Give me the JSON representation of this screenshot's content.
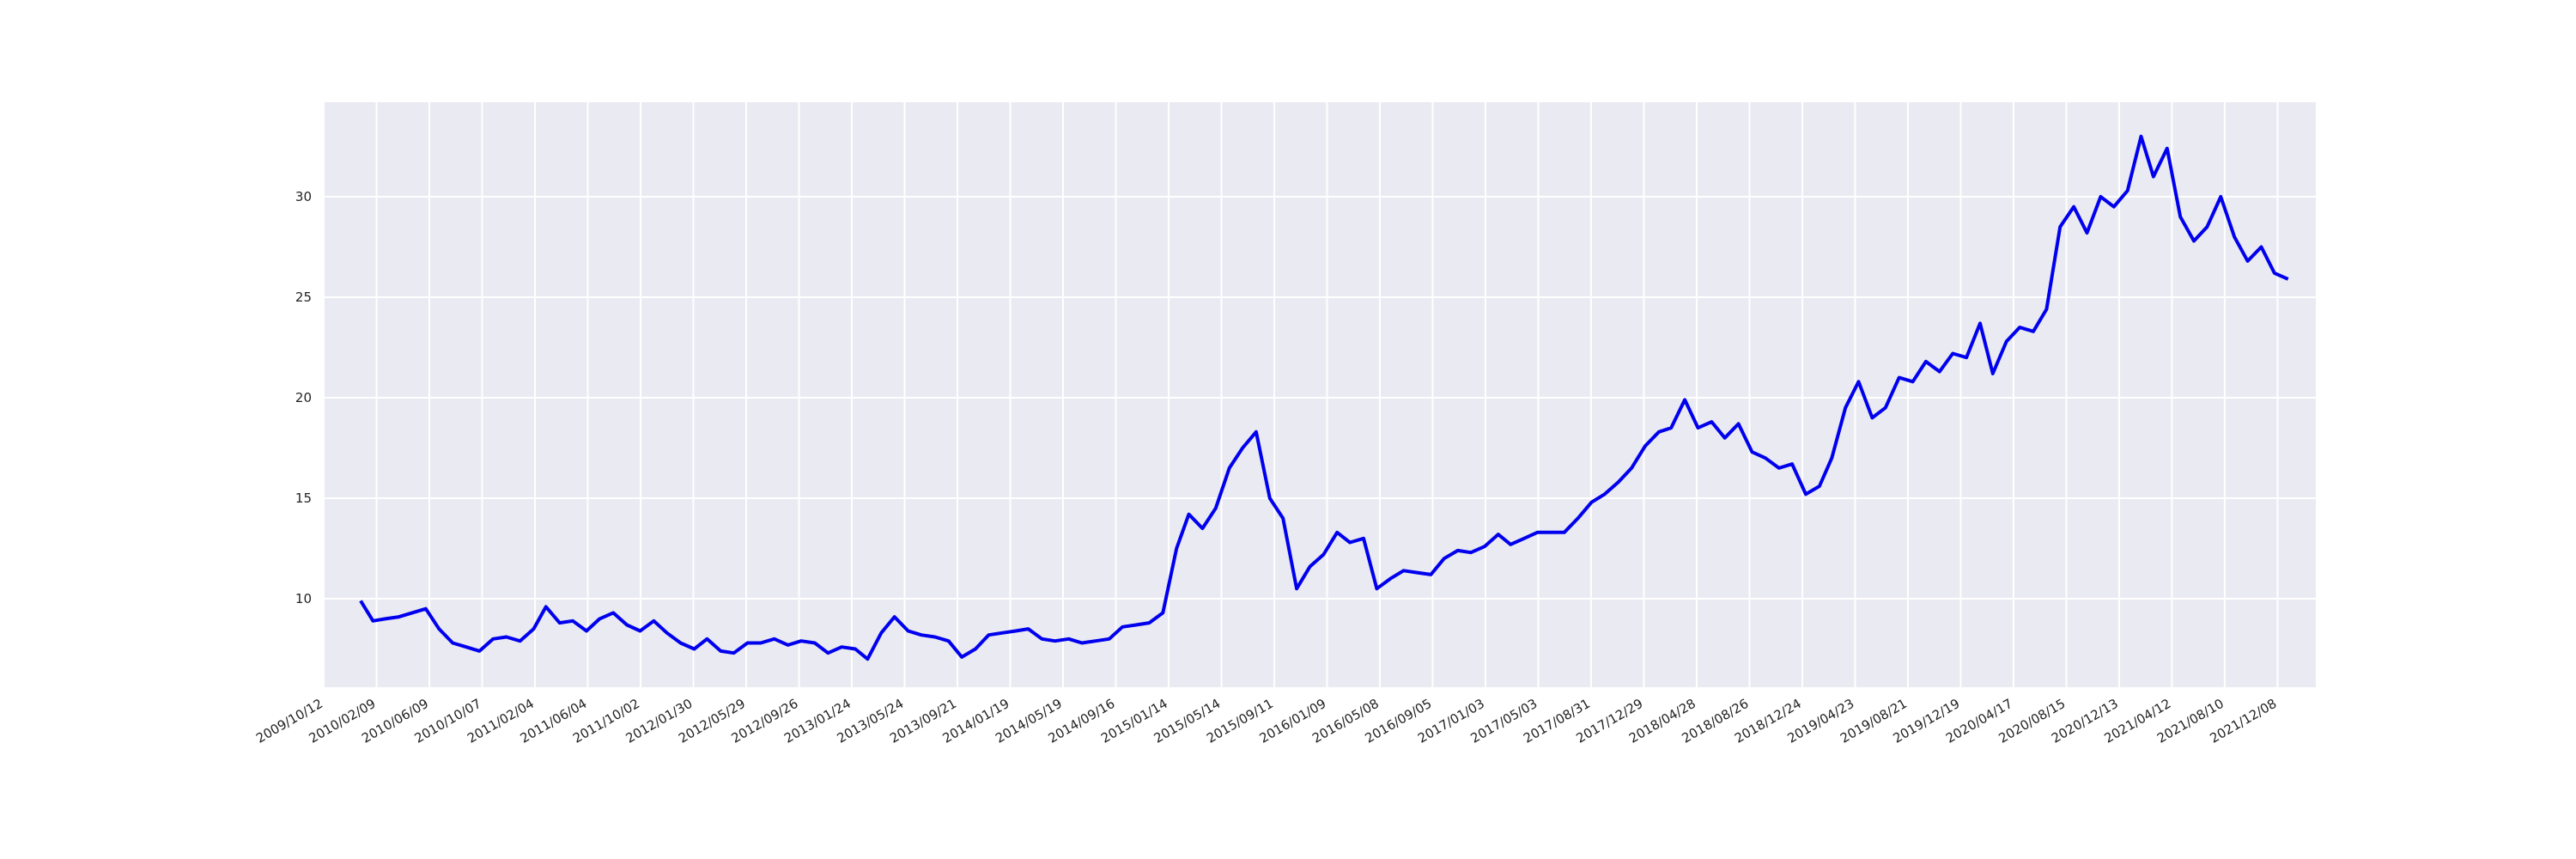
{
  "chart_data": {
    "type": "line",
    "x": [
      "2010/01/04",
      "2010/02/01",
      "2010/03/01",
      "2010/04/01",
      "2010/05/01",
      "2010/06/01",
      "2010/07/01",
      "2010/08/01",
      "2010/09/01",
      "2010/10/01",
      "2010/11/01",
      "2010/12/01",
      "2011/01/01",
      "2011/02/01",
      "2011/03/01",
      "2011/04/01",
      "2011/05/01",
      "2011/06/01",
      "2011/07/01",
      "2011/08/01",
      "2011/09/01",
      "2011/10/01",
      "2011/11/01",
      "2011/12/01",
      "2012/01/01",
      "2012/02/01",
      "2012/03/01",
      "2012/04/01",
      "2012/05/01",
      "2012/06/01",
      "2012/07/01",
      "2012/08/01",
      "2012/09/01",
      "2012/10/01",
      "2012/11/01",
      "2012/12/01",
      "2013/01/01",
      "2013/02/01",
      "2013/03/01",
      "2013/04/01",
      "2013/05/01",
      "2013/06/01",
      "2013/07/01",
      "2013/08/01",
      "2013/09/01",
      "2013/10/01",
      "2013/11/01",
      "2013/12/01",
      "2014/01/01",
      "2014/02/01",
      "2014/03/01",
      "2014/04/01",
      "2014/05/01",
      "2014/06/01",
      "2014/07/01",
      "2014/08/01",
      "2014/09/01",
      "2014/10/01",
      "2014/11/01",
      "2014/12/01",
      "2015/01/01",
      "2015/02/01",
      "2015/03/01",
      "2015/04/01",
      "2015/05/01",
      "2015/06/01",
      "2015/07/01",
      "2015/08/01",
      "2015/09/01",
      "2015/10/01",
      "2015/11/01",
      "2015/12/01",
      "2016/01/01",
      "2016/02/01",
      "2016/03/01",
      "2016/04/01",
      "2016/05/01",
      "2016/06/01",
      "2016/07/01",
      "2016/08/01",
      "2016/09/01",
      "2016/10/01",
      "2016/11/01",
      "2016/12/01",
      "2017/01/01",
      "2017/02/01",
      "2017/03/01",
      "2017/04/01",
      "2017/05/01",
      "2017/06/01",
      "2017/07/01",
      "2017/08/01",
      "2017/09/01",
      "2017/10/01",
      "2017/11/01",
      "2017/12/01",
      "2018/01/01",
      "2018/02/01",
      "2018/03/01",
      "2018/04/01",
      "2018/05/01",
      "2018/06/01",
      "2018/07/01",
      "2018/08/01",
      "2018/09/01",
      "2018/10/01",
      "2018/11/01",
      "2018/12/01",
      "2019/01/01",
      "2019/02/01",
      "2019/03/01",
      "2019/04/01",
      "2019/05/01",
      "2019/06/01",
      "2019/07/01",
      "2019/08/01",
      "2019/09/01",
      "2019/10/01",
      "2019/11/01",
      "2019/12/01",
      "2020/01/01",
      "2020/02/01",
      "2020/03/01",
      "2020/04/01",
      "2020/05/01",
      "2020/06/01",
      "2020/07/01",
      "2020/08/01",
      "2020/09/01",
      "2020/10/01",
      "2020/11/01",
      "2020/12/01",
      "2021/01/01",
      "2021/02/01",
      "2021/03/01",
      "2021/04/01",
      "2021/05/01",
      "2021/06/01",
      "2021/07/01",
      "2021/08/01",
      "2021/09/01",
      "2021/10/01",
      "2021/11/01",
      "2021/12/01",
      "2022/01/01"
    ],
    "series": [
      {
        "color": "#0000ee",
        "values": [
          9.9,
          8.9,
          9.0,
          9.1,
          9.3,
          9.5,
          8.5,
          7.8,
          7.6,
          7.4,
          8.0,
          8.1,
          7.9,
          8.5,
          9.6,
          8.8,
          8.9,
          8.4,
          9.0,
          9.3,
          8.7,
          8.4,
          8.9,
          8.3,
          7.8,
          7.5,
          8.0,
          7.4,
          7.3,
          7.8,
          7.8,
          8.0,
          7.7,
          7.9,
          7.8,
          7.3,
          7.6,
          7.5,
          7.0,
          8.3,
          9.1,
          8.4,
          8.2,
          8.1,
          7.9,
          7.1,
          7.5,
          8.2,
          8.3,
          8.4,
          8.5,
          8.0,
          7.9,
          8.0,
          7.8,
          7.9,
          8.0,
          8.6,
          8.7,
          8.8,
          9.3,
          12.5,
          14.2,
          13.5,
          14.5,
          16.5,
          17.5,
          18.3,
          15.0,
          14.0,
          10.5,
          11.6,
          12.2,
          13.3,
          12.8,
          13.0,
          10.5,
          11.0,
          11.4,
          11.3,
          11.2,
          12.0,
          12.4,
          12.3,
          12.6,
          13.2,
          12.7,
          13.0,
          13.3,
          13.3,
          13.3,
          14.0,
          14.8,
          15.2,
          15.8,
          16.5,
          17.6,
          18.3,
          18.5,
          19.9,
          18.5,
          18.8,
          18.0,
          18.7,
          17.3,
          17.0,
          16.5,
          16.7,
          15.2,
          15.6,
          17.0,
          19.5,
          20.8,
          19.0,
          19.5,
          21.0,
          20.8,
          21.8,
          21.3,
          22.2,
          22.0,
          23.7,
          21.2,
          22.8,
          23.5,
          23.3,
          24.4,
          28.5,
          29.5,
          28.2,
          30.0,
          29.5,
          30.3,
          33.0,
          31.0,
          32.4,
          29.0,
          27.8,
          28.5,
          30.0,
          28.0,
          26.8,
          27.5,
          26.2,
          25.9
        ]
      }
    ],
    "xlim": [
      "2009/10/12",
      "2022/03/05"
    ],
    "xticks": [
      "2009/10/12",
      "2010/02/09",
      "2010/06/09",
      "2010/10/07",
      "2011/02/04",
      "2011/06/04",
      "2011/10/02",
      "2012/01/30",
      "2012/05/29",
      "2012/09/26",
      "2013/01/24",
      "2013/05/24",
      "2013/09/21",
      "2014/01/19",
      "2014/05/19",
      "2014/09/16",
      "2015/01/14",
      "2015/05/14",
      "2015/09/11",
      "2016/01/09",
      "2016/05/08",
      "2016/09/05",
      "2017/01/03",
      "2017/05/03",
      "2017/08/31",
      "2017/12/29",
      "2018/04/28",
      "2018/08/26",
      "2018/12/24",
      "2019/04/23",
      "2019/08/21",
      "2019/12/19",
      "2020/04/17",
      "2020/08/15",
      "2020/12/13",
      "2021/04/12",
      "2021/08/10",
      "2021/12/08"
    ],
    "ylim": [
      5.6,
      34.7
    ],
    "yticks": [
      10,
      15,
      20,
      25,
      30
    ],
    "grid": true
  }
}
